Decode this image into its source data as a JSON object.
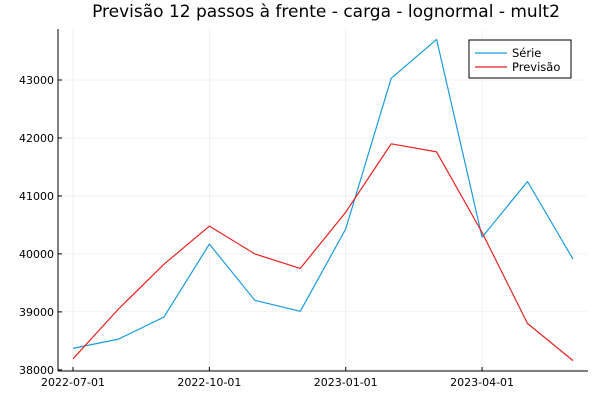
{
  "chart_data": {
    "type": "line",
    "title": "Previsão 12 passos à frente - carga - lognormal - mult2",
    "xlabel": "",
    "ylabel": "",
    "x": [
      "2022-07-01",
      "2022-08-01",
      "2022-09-01",
      "2022-10-01",
      "2022-11-01",
      "2022-12-01",
      "2023-01-01",
      "2023-02-01",
      "2023-03-01",
      "2023-04-01",
      "2023-05-01",
      "2023-06-01"
    ],
    "x_tick_labels": [
      "2022-07-01",
      "2022-10-01",
      "2023-01-01",
      "2023-04-01"
    ],
    "x_tick_indices": [
      0,
      3,
      6,
      9
    ],
    "y_ticks": [
      38000,
      39000,
      40000,
      41000,
      42000,
      43000
    ],
    "y_tick_labels": [
      "38000",
      "39000",
      "40000",
      "41000",
      "42000",
      "43000"
    ],
    "ylim": [
      37980,
      43880
    ],
    "grid": true,
    "legend_position": "top-right",
    "series": [
      {
        "name": "Série",
        "color": "#1a9be0",
        "values": [
          38370,
          38530,
          38910,
          40170,
          39200,
          39010,
          40430,
          43030,
          43700,
          40290,
          41250,
          39910
        ]
      },
      {
        "name": "Previsão",
        "color": "#e8211f",
        "values": [
          38190,
          39050,
          39820,
          40480,
          40000,
          39750,
          40720,
          41900,
          41760,
          40370,
          38800,
          38160
        ]
      }
    ]
  }
}
